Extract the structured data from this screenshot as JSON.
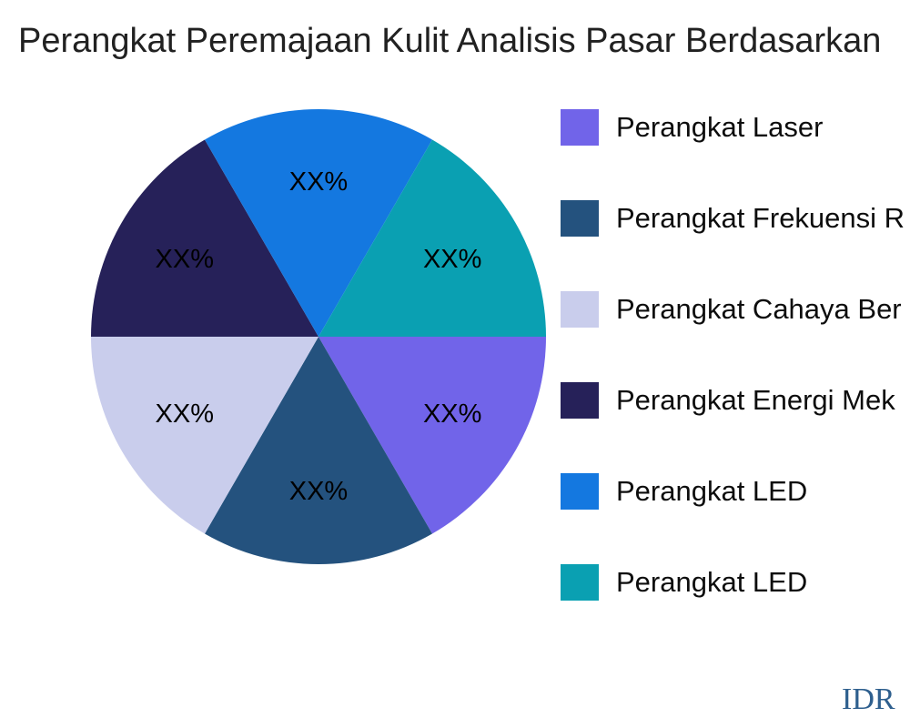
{
  "title": "Perangkat Peremajaan Kulit Analisis Pasar Berdasarkan",
  "watermark": "IDR",
  "colors": {
    "background": "#ffffff",
    "title_text": "#212121",
    "legend_text": "#0d0d0d",
    "pie_label_text": "#000000",
    "watermark_text": "#2e5f8e"
  },
  "chart_data": {
    "type": "pie",
    "title": "Perangkat Peremajaan Kulit Analisis Pasar Berdasarkan",
    "labels": [
      "Perangkat Laser",
      "Perangkat Frekuensi R",
      "Perangkat Cahaya Ber",
      "Perangkat Energi Mek",
      "Perangkat LED",
      "Perangkat LED"
    ],
    "values": [
      16.67,
      16.67,
      16.67,
      16.67,
      16.67,
      16.67
    ],
    "value_display_labels": [
      "XX%",
      "XX%",
      "XX%",
      "XX%",
      "XX%",
      "XX%"
    ],
    "colors": [
      "#7164e9",
      "#24527e",
      "#c9cdec",
      "#262159",
      "#1478e0",
      "#0aa0b2"
    ],
    "start_angle": 0,
    "direction": "clockwise",
    "legend_position": "right",
    "slice_angle_deg": 60
  }
}
